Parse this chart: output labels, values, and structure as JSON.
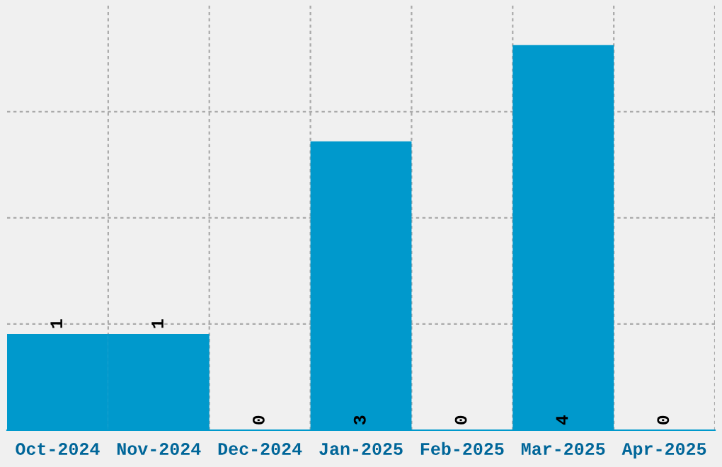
{
  "chart_data": {
    "type": "bar",
    "categories": [
      "Oct-2024",
      "Nov-2024",
      "Dec-2024",
      "Jan-2025",
      "Feb-2025",
      "Mar-2025",
      "Apr-2025"
    ],
    "values": [
      1,
      1,
      0,
      3,
      0,
      4,
      0
    ],
    "color": "#0099cc",
    "data_labels": true,
    "ylim": [
      0,
      4.41
    ],
    "yticks": [
      {
        "value": 1.103,
        "label": null
      },
      {
        "value": 2.206,
        "label": null
      },
      {
        "value": 3.309,
        "label": null
      }
    ],
    "tick_labels": "x",
    "grid": true
  }
}
